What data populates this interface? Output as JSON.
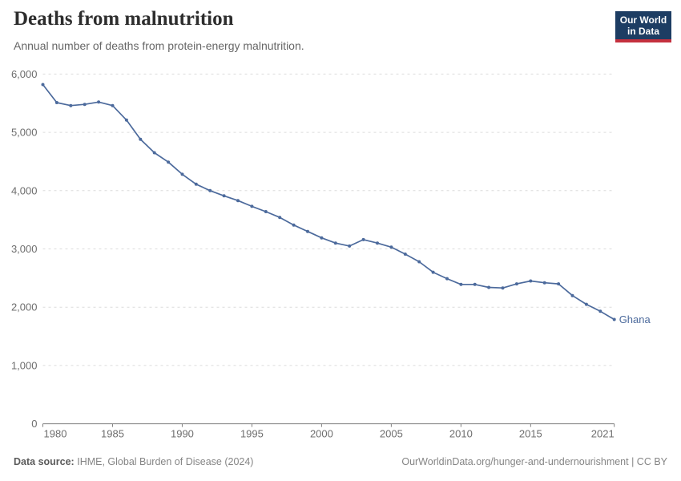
{
  "header": {
    "logo": {
      "line1": "Our World",
      "line2": "in Data"
    }
  },
  "footer": {
    "source_label": "Data source:",
    "source_value": "IHME, Global Burden of Disease (2024)",
    "credit": "OurWorldinData.org/hunger-and-undernourishment | CC BY"
  },
  "colors": {
    "accent": "#4C6A9C",
    "logo_navy": "#1d3d63",
    "logo_red": "#c5303e",
    "grid": "#dcdcdc",
    "axis": "#808080",
    "tick_text": "#6e6e6e",
    "title_text": "#2d2d2d",
    "subtitle_text": "#666666"
  },
  "chart_data": {
    "type": "line",
    "title": "Deaths from malnutrition",
    "subtitle": "Annual number of deaths from protein-energy malnutrition.",
    "xlabel": "",
    "ylabel": "",
    "xlim": [
      1980,
      2021
    ],
    "ylim": [
      0,
      6000
    ],
    "grid": "dashed-horizontal",
    "legend": "end-of-line-label",
    "series": [
      {
        "name": "Ghana",
        "color": "#4C6A9C",
        "x": [
          1980,
          1981,
          1982,
          1983,
          1984,
          1985,
          1986,
          1987,
          1988,
          1989,
          1990,
          1991,
          1992,
          1993,
          1994,
          1995,
          1996,
          1997,
          1998,
          1999,
          2000,
          2001,
          2002,
          2003,
          2004,
          2005,
          2006,
          2007,
          2008,
          2009,
          2010,
          2011,
          2012,
          2013,
          2014,
          2015,
          2016,
          2017,
          2018,
          2019,
          2020,
          2021
        ],
        "values": [
          5820,
          5510,
          5460,
          5480,
          5520,
          5460,
          5210,
          4880,
          4650,
          4490,
          4280,
          4110,
          4000,
          3910,
          3830,
          3730,
          3640,
          3540,
          3410,
          3300,
          3190,
          3100,
          3050,
          3160,
          3100,
          3030,
          2910,
          2780,
          2600,
          2490,
          2390,
          2390,
          2340,
          2330,
          2400,
          2450,
          2420,
          2400,
          2200,
          2050,
          1930,
          1790
        ]
      }
    ],
    "x_ticks": [
      {
        "year": 1980,
        "label": "1980",
        "anchor": "start"
      },
      {
        "year": 1985,
        "label": "1985",
        "anchor": "middle"
      },
      {
        "year": 1990,
        "label": "1990",
        "anchor": "middle"
      },
      {
        "year": 1995,
        "label": "1995",
        "anchor": "middle"
      },
      {
        "year": 2000,
        "label": "2000",
        "anchor": "middle"
      },
      {
        "year": 2005,
        "label": "2005",
        "anchor": "middle"
      },
      {
        "year": 2010,
        "label": "2010",
        "anchor": "middle"
      },
      {
        "year": 2015,
        "label": "2015",
        "anchor": "middle"
      },
      {
        "year": 2021,
        "label": "2021",
        "anchor": "end"
      }
    ],
    "y_ticks": [
      {
        "value": 0,
        "label": "0"
      },
      {
        "value": 1000,
        "label": "1,000"
      },
      {
        "value": 2000,
        "label": "2,000"
      },
      {
        "value": 3000,
        "label": "3,000"
      },
      {
        "value": 4000,
        "label": "4,000"
      },
      {
        "value": 5000,
        "label": "5,000"
      },
      {
        "value": 6000,
        "label": "6,000"
      }
    ]
  }
}
